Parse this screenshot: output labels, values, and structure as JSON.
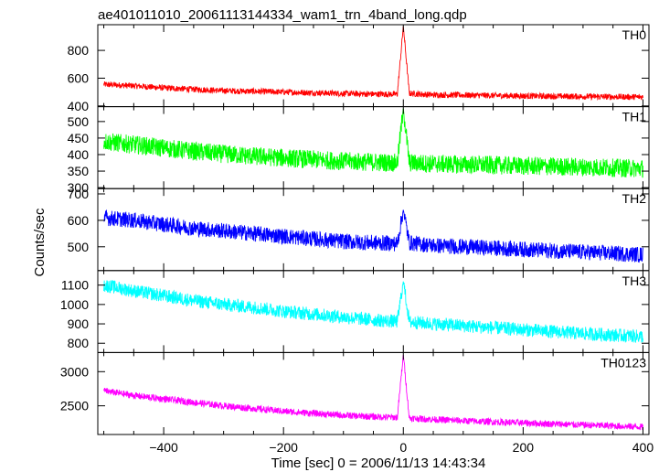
{
  "chart_data": {
    "type": "line",
    "title": "ae401011010_20061113144334_wam1_trn_4band_long.qdp",
    "xlabel": "Time [sec] 0 = 2006/11/13 14:43:34",
    "ylabel": "Counts/sec",
    "xlim": [
      -510,
      410
    ],
    "x_ticks": [
      -400,
      -200,
      0,
      200,
      400
    ],
    "x_tick_labels": [
      "−400",
      "−200",
      "0",
      "200",
      "400"
    ],
    "grid": false,
    "panels": [
      {
        "name": "TH0",
        "color": "#ff0000",
        "ylim": [
          395,
          985
        ],
        "y_ticks": [
          400,
          600,
          800
        ],
        "y_tick_labels": [
          "400",
          "600",
          "800"
        ],
        "series": [
          {
            "name": "TH0",
            "x": [
              -500,
              -450,
              -400,
              -350,
              -300,
              -250,
              -200,
              -150,
              -100,
              -50,
              -10,
              0,
              10,
              50,
              100,
              150,
              200,
              250,
              300,
              350,
              400
            ],
            "y": [
              555,
              545,
              530,
              520,
              510,
              505,
              500,
              495,
              490,
              485,
              485,
              975,
              490,
              480,
              478,
              475,
              472,
              470,
              468,
              466,
              465
            ],
            "noise": 22
          }
        ]
      },
      {
        "name": "TH1",
        "color": "#00ff00",
        "ylim": [
          297,
          545
        ],
        "y_ticks": [
          300,
          350,
          400,
          450,
          500
        ],
        "y_tick_labels": [
          "300",
          "350",
          "400",
          "450",
          "500"
        ],
        "series": [
          {
            "name": "TH1",
            "x": [
              -500,
              -450,
              -400,
              -350,
              -300,
              -250,
              -200,
              -150,
              -100,
              -50,
              -10,
              0,
              10,
              50,
              100,
              150,
              200,
              250,
              300,
              350,
              400
            ],
            "y": [
              440,
              430,
              420,
              410,
              402,
              395,
              390,
              385,
              380,
              377,
              375,
              540,
              375,
              372,
              370,
              368,
              366,
              364,
              362,
              360,
              358
            ],
            "noise": 28
          }
        ]
      },
      {
        "name": "TH2",
        "color": "#0000ff",
        "ylim": [
          410,
          720
        ],
        "y_ticks": [
          500,
          600,
          700
        ],
        "y_tick_labels": [
          "500",
          "600",
          "700"
        ],
        "series": [
          {
            "name": "TH2",
            "x": [
              -500,
              -450,
              -400,
              -350,
              -300,
              -250,
              -200,
              -150,
              -100,
              -50,
              -10,
              0,
              10,
              50,
              100,
              150,
              200,
              250,
              300,
              350,
              400
            ],
            "y": [
              610,
              600,
              585,
              570,
              560,
              550,
              540,
              530,
              520,
              515,
              512,
              640,
              515,
              505,
              500,
              495,
              490,
              485,
              480,
              475,
              470
            ],
            "noise": 30
          }
        ]
      },
      {
        "name": "TH3",
        "color": "#00ffff",
        "ylim": [
          752,
          1175
        ],
        "y_ticks": [
          800,
          900,
          1000,
          1100
        ],
        "y_tick_labels": [
          "800",
          "900",
          "1000",
          "1100"
        ],
        "series": [
          {
            "name": "TH3",
            "x": [
              -500,
              -450,
              -400,
              -350,
              -300,
              -250,
              -200,
              -150,
              -100,
              -50,
              -10,
              0,
              10,
              50,
              100,
              150,
              200,
              250,
              300,
              350,
              400
            ],
            "y": [
              1100,
              1070,
              1045,
              1020,
              1000,
              985,
              965,
              950,
              935,
              920,
              912,
              1120,
              910,
              900,
              890,
              880,
              870,
              860,
              850,
              842,
              835
            ],
            "noise": 35
          }
        ]
      },
      {
        "name": "TH0123",
        "color": "#ff00ff",
        "ylim": [
          2080,
          3280
        ],
        "y_ticks": [
          2500,
          3000
        ],
        "y_tick_labels": [
          "2500",
          "3000"
        ],
        "series": [
          {
            "name": "TH0123",
            "x": [
              -500,
              -450,
              -400,
              -350,
              -300,
              -250,
              -200,
              -150,
              -100,
              -50,
              -10,
              0,
              10,
              50,
              100,
              150,
              200,
              250,
              300,
              350,
              400
            ],
            "y": [
              2720,
              2650,
              2600,
              2550,
              2500,
              2460,
              2420,
              2390,
              2360,
              2340,
              2330,
              3250,
              2320,
              2300,
              2280,
              2265,
              2250,
              2235,
              2220,
              2205,
              2190
            ],
            "noise": 50
          }
        ]
      }
    ]
  }
}
